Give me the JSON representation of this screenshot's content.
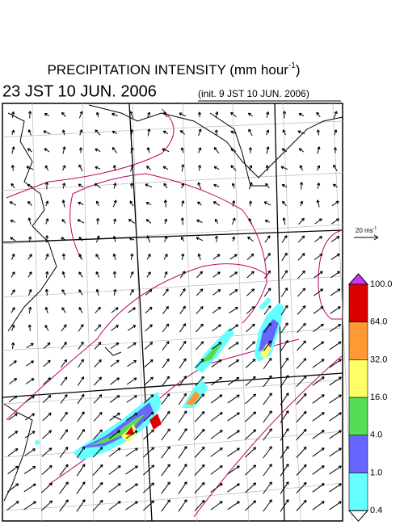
{
  "header": {
    "title": "PRECIPITATION INTENSITY (mm hour",
    "title_superscript": "-1",
    "title_close": ")",
    "valid_time": "23 JST 10 JUN. 2006",
    "init_time": "(init. 9 JST 10 JUN. 2006)"
  },
  "reference_vector": {
    "label": "20 ms",
    "label_superscript": "-1"
  },
  "colorbar": {
    "labels": [
      "100.0",
      "64.0",
      "32.0",
      "16.0",
      "4.0",
      "1.0",
      "0.4"
    ],
    "colors": [
      "#dd0000",
      "#ff9933",
      "#ffff66",
      "#55dd55",
      "#6666ff",
      "#66ffff"
    ],
    "over_color": "#cc33ff",
    "under_color": "#ffffff"
  }
}
